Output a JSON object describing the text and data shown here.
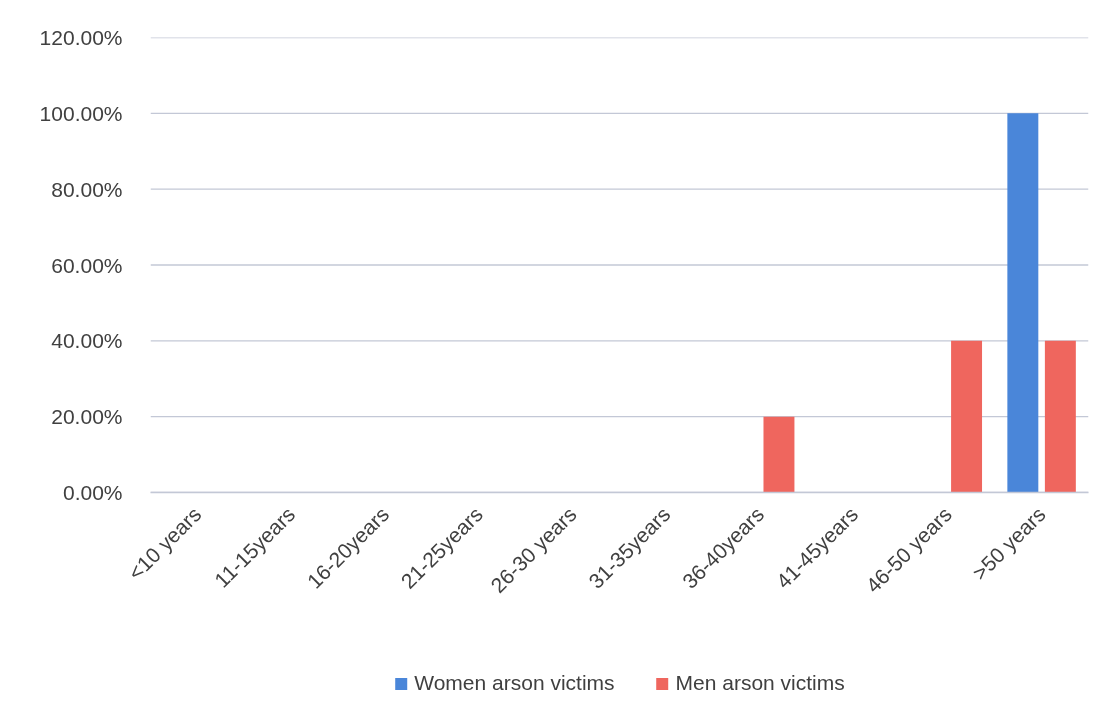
{
  "chart_data": {
    "type": "bar",
    "categories": [
      "<10 years",
      "11-15years",
      "16-20years",
      "21-25years",
      "26-30 years",
      "31-35years",
      "36-40years",
      "41-45years",
      "46-50 years",
      ">50 years"
    ],
    "series": [
      {
        "name": "Women arson victims",
        "color": "#4a86d9",
        "values": [
          0,
          0,
          0,
          0,
          0,
          0,
          0,
          0,
          0,
          100
        ]
      },
      {
        "name": "Men arson victims",
        "color": "#ef665e",
        "values": [
          0,
          0,
          0,
          0,
          0,
          0,
          20,
          0,
          40,
          40
        ]
      }
    ],
    "ylim": [
      0,
      120
    ],
    "yticks": [
      {
        "value": 0,
        "label": "0.00%"
      },
      {
        "value": 20,
        "label": "20.00%"
      },
      {
        "value": 40,
        "label": "40.00%"
      },
      {
        "value": 60,
        "label": "60.00%"
      },
      {
        "value": 80,
        "label": "80.00%"
      },
      {
        "value": 100,
        "label": "100.00%"
      },
      {
        "value": 120,
        "label": "120.00%"
      }
    ],
    "grid": "y",
    "legend": "bottom"
  }
}
